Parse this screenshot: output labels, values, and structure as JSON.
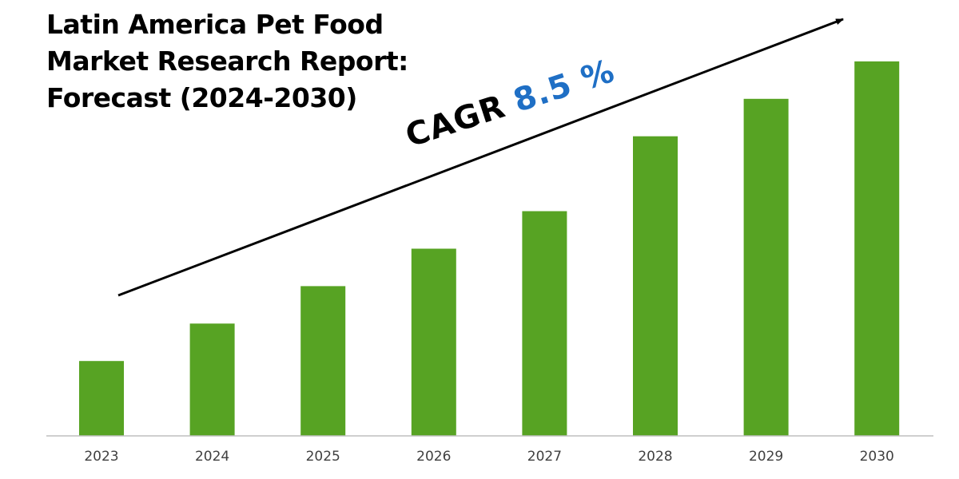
{
  "chart_data": {
    "type": "bar",
    "title_lines": [
      "Latin America Pet Food",
      "Market Research Report:",
      "Forecast (2024-2030)"
    ],
    "categories": [
      "2023",
      "2024",
      "2025",
      "2026",
      "2027",
      "2028",
      "2029",
      "2030"
    ],
    "values": [
      1.0,
      1.5,
      2.0,
      2.5,
      3.0,
      4.0,
      4.5,
      5.0
    ],
    "value_scale_note": "relative bar heights (no value axis printed)",
    "ylim": [
      0,
      5.5
    ],
    "grid": false,
    "legend": "none",
    "annotation": {
      "label": "CAGR",
      "value": "8.5 %",
      "arrow": "rising from 2023 toward 2030"
    },
    "colors": {
      "bar": "#57A323",
      "cagr_value": "#1F6FC5",
      "axis": "#BFBFBF",
      "tick_text": "#404040",
      "arrow": "#000000"
    }
  }
}
